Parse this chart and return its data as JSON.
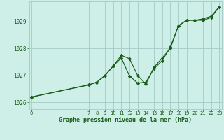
{
  "xlabel": "Graphe pression niveau de la mer (hPa)",
  "background_color": "#ceeee8",
  "grid_color": "#aacfca",
  "line_color": "#1a5c1a",
  "marker_color": "#1a5c1a",
  "x_ticks": [
    0,
    7,
    8,
    9,
    10,
    11,
    12,
    13,
    14,
    15,
    16,
    17,
    18,
    19,
    20,
    21,
    22,
    23
  ],
  "ylim": [
    1025.75,
    1029.75
  ],
  "yticks": [
    1026,
    1027,
    1028,
    1029
  ],
  "xlim": [
    -0.3,
    23.3
  ],
  "series1_x": [
    0,
    7,
    8,
    9,
    10,
    11,
    12,
    13,
    14,
    15,
    16,
    17,
    18,
    19,
    20,
    21,
    22,
    23
  ],
  "series1_y": [
    1026.2,
    1026.65,
    1026.75,
    1027.0,
    1027.35,
    1027.75,
    1027.62,
    1027.0,
    1026.68,
    1027.3,
    1027.65,
    1028.0,
    1028.85,
    1029.05,
    1029.05,
    1029.1,
    1029.2,
    1029.55
  ],
  "series2_x": [
    0,
    7,
    8,
    9,
    10,
    11,
    12,
    13,
    14,
    15,
    16,
    17,
    18,
    19,
    20,
    21,
    22,
    23
  ],
  "series2_y": [
    1026.2,
    1026.65,
    1026.75,
    1027.0,
    1027.35,
    1027.65,
    1026.98,
    1026.72,
    1026.75,
    1027.25,
    1027.55,
    1028.05,
    1028.85,
    1029.05,
    1029.05,
    1029.05,
    1029.15,
    1029.55
  ],
  "figsize": [
    3.2,
    2.0
  ],
  "dpi": 100
}
